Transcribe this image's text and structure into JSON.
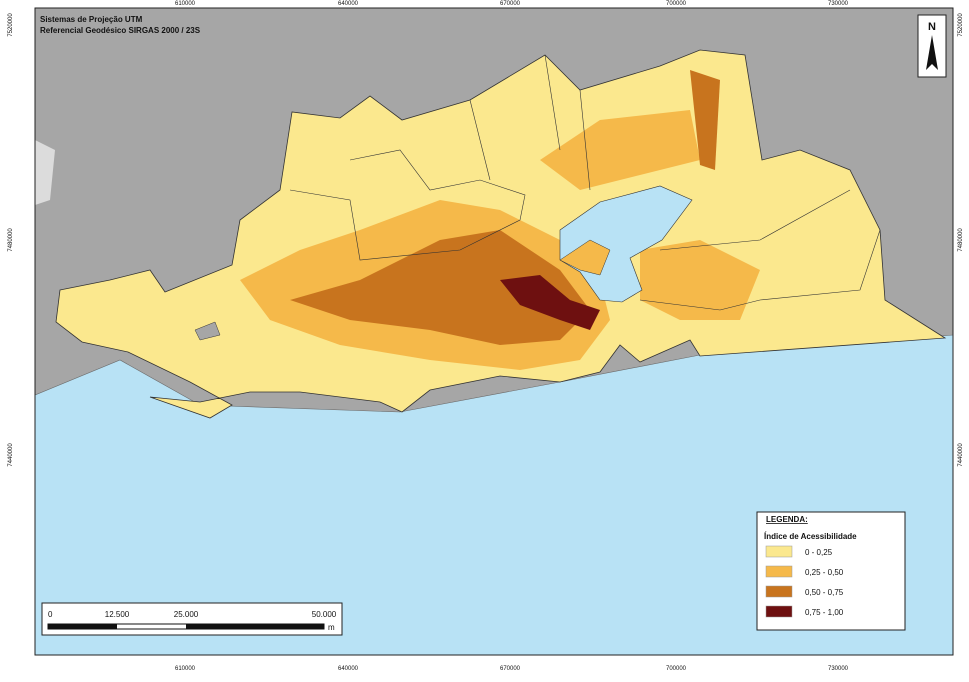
{
  "header": {
    "title": "Sistemas de Projeção UTM",
    "subtitle": "Referencial Geodésico SIRGAS 2000 / 23S"
  },
  "north_arrow": "N",
  "grid": {
    "x_labels": [
      "610000",
      "640000",
      "670000",
      "700000",
      "730000"
    ],
    "y_labels": [
      "7520000",
      "7480000",
      "7440000"
    ]
  },
  "scale_bar": {
    "labels": [
      "0",
      "12.500",
      "25.000",
      "50.000"
    ],
    "unit": "m"
  },
  "legend": {
    "title": "LEGENDA:",
    "subtitle": "Índice de Acessibilidade",
    "items": [
      {
        "label": "0 - 0,25",
        "color": "#fbe88e"
      },
      {
        "label": "0,25 - 0,50",
        "color": "#f5b94a"
      },
      {
        "label": "0,50 - 0,75",
        "color": "#c8741e"
      },
      {
        "label": "0,75 - 1,00",
        "color": "#6e1010"
      }
    ]
  }
}
